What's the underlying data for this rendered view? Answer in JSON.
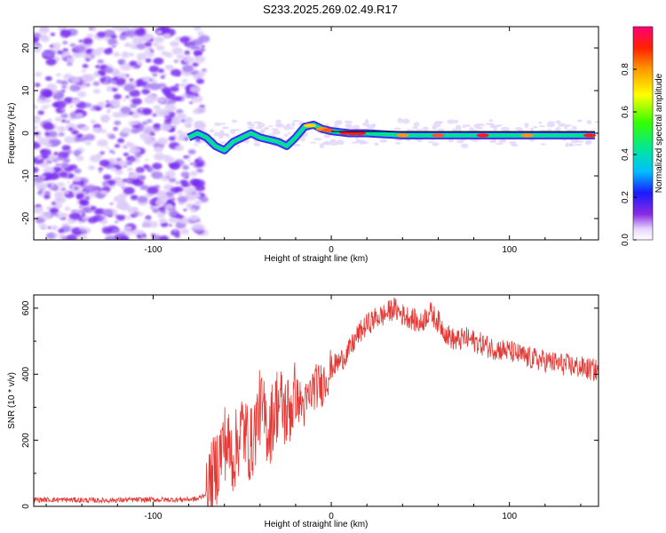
{
  "title": "S233.2025.269.02.49.R17",
  "colors": {
    "snr_line": "#e53935",
    "axis": "#000000",
    "scatter_purple": "#7b1fe6",
    "scatter_light": "#d9c8f5"
  },
  "chart_data": [
    {
      "type": "heatmap",
      "xlabel": "Height of straight line (km)",
      "ylabel": "Frequency (Hz)",
      "xlim": [
        -167,
        150
      ],
      "ylim": [
        -25,
        25
      ],
      "xticks": [
        -100,
        0,
        100
      ],
      "xtick_labels": [
        "-100",
        "0",
        "100"
      ],
      "yticks": [
        -20,
        -10,
        0,
        10,
        20
      ],
      "ytick_labels": [
        "-20",
        "-10",
        "0",
        "10",
        "20"
      ],
      "noise_region_x": [
        -167,
        -75
      ],
      "ridge": {
        "x": [
          -80,
          -75,
          -70,
          -65,
          -60,
          -55,
          -50,
          -45,
          -40,
          -35,
          -30,
          -25,
          -20,
          -15,
          -10,
          -5,
          0,
          10,
          20,
          40,
          60,
          80,
          100,
          120,
          140,
          148
        ],
        "y": [
          -1,
          0,
          -1,
          -3,
          -4,
          -2,
          -1,
          0,
          -1,
          -1.5,
          -2,
          -3,
          -1,
          1.5,
          2,
          1,
          0.5,
          0,
          0,
          -0.5,
          -0.5,
          -0.5,
          -0.5,
          -0.5,
          -0.5,
          -0.5
        ]
      },
      "colorbar": {
        "label": "Normalized spectral amplitude",
        "range": [
          0,
          1
        ],
        "ticks": [
          0,
          0.2,
          0.4,
          0.6,
          0.8
        ],
        "tick_labels": [
          "0.0",
          "0.2",
          "0.4",
          "0.6",
          "0.8"
        ]
      }
    },
    {
      "type": "line",
      "xlabel": "Height of straight line (km)",
      "ylabel": "SNR (10 * v/v)",
      "xlim": [
        -167,
        150
      ],
      "ylim": [
        0,
        640
      ],
      "xticks": [
        -100,
        0,
        100
      ],
      "xtick_labels": [
        "-100",
        "0",
        "100"
      ],
      "yticks": [
        0,
        200,
        400,
        600
      ],
      "ytick_labels": [
        "0",
        "200",
        "400",
        "600"
      ],
      "series": [
        {
          "x": [
            -167,
            -150,
            -130,
            -110,
            -90,
            -75,
            -70,
            -65,
            -60,
            -55,
            -50,
            -45,
            -40,
            -35,
            -30,
            -25,
            -20,
            -15,
            -10,
            -5,
            0,
            5,
            10,
            15,
            20,
            25,
            30,
            35,
            40,
            45,
            50,
            55,
            60,
            65,
            70,
            75,
            80,
            90,
            100,
            110,
            120,
            130,
            140,
            150
          ],
          "y": [
            20,
            20,
            18,
            20,
            20,
            22,
            40,
            110,
            200,
            150,
            240,
            180,
            300,
            230,
            320,
            280,
            330,
            300,
            360,
            370,
            420,
            440,
            470,
            520,
            550,
            570,
            580,
            600,
            580,
            570,
            550,
            590,
            560,
            520,
            500,
            510,
            500,
            480,
            470,
            450,
            440,
            430,
            420,
            410
          ]
        }
      ]
    }
  ]
}
